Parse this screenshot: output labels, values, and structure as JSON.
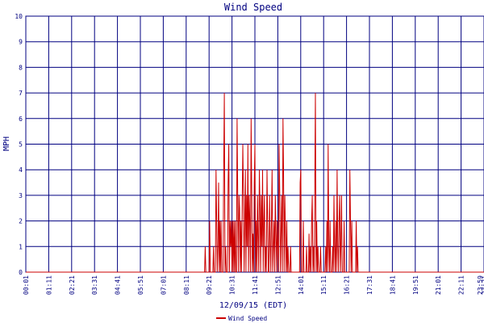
{
  "chart_data": {
    "type": "line",
    "title": "Wind Speed",
    "ylabel": "MPH",
    "xlabel": "12/09/15 (EDT)",
    "ylim": [
      0,
      10
    ],
    "y_ticks": [
      0,
      1,
      2,
      3,
      4,
      5,
      6,
      7,
      8,
      9,
      10
    ],
    "x_tick_labels": [
      "00:01",
      "01:11",
      "02:21",
      "03:31",
      "04:41",
      "05:51",
      "07:01",
      "08:11",
      "09:21",
      "10:31",
      "11:41",
      "12:51",
      "14:01",
      "15:11",
      "16:21",
      "17:31",
      "18:41",
      "19:51",
      "21:01",
      "22:11",
      "23:21"
    ],
    "x_end_label": "23:59",
    "x_range_minutes": [
      1,
      1439
    ],
    "grid": true,
    "legend_position": "bottom-left",
    "series": [
      {
        "name": "Wind Speed",
        "color": "#cc0000",
        "points": [
          [
            540,
            0
          ],
          [
            562,
            0
          ],
          [
            564,
            1
          ],
          [
            566,
            0
          ],
          [
            576,
            0
          ],
          [
            578,
            2
          ],
          [
            580,
            0
          ],
          [
            584,
            0
          ],
          [
            588,
            0
          ],
          [
            590,
            1
          ],
          [
            592,
            0
          ],
          [
            596,
            0
          ],
          [
            598,
            4
          ],
          [
            600,
            2
          ],
          [
            602,
            0
          ],
          [
            604,
            1
          ],
          [
            606,
            3.5
          ],
          [
            608,
            0
          ],
          [
            610,
            2
          ],
          [
            612,
            0
          ],
          [
            614,
            2
          ],
          [
            616,
            0
          ],
          [
            620,
            0
          ],
          [
            622,
            4
          ],
          [
            624,
            7
          ],
          [
            626,
            0
          ],
          [
            628,
            1
          ],
          [
            630,
            0
          ],
          [
            634,
            0
          ],
          [
            636,
            3.5
          ],
          [
            638,
            5
          ],
          [
            640,
            0
          ],
          [
            642,
            2
          ],
          [
            644,
            1
          ],
          [
            646,
            2
          ],
          [
            648,
            0
          ],
          [
            650,
            2
          ],
          [
            652,
            0
          ],
          [
            654,
            2
          ],
          [
            656,
            0
          ],
          [
            658,
            2
          ],
          [
            660,
            0
          ],
          [
            662,
            0
          ],
          [
            664,
            6
          ],
          [
            666,
            3
          ],
          [
            668,
            0
          ],
          [
            670,
            3
          ],
          [
            672,
            2.5
          ],
          [
            674,
            0
          ],
          [
            676,
            2
          ],
          [
            678,
            0
          ],
          [
            680,
            2.5
          ],
          [
            682,
            5
          ],
          [
            684,
            3
          ],
          [
            686,
            0
          ],
          [
            688,
            2
          ],
          [
            690,
            4
          ],
          [
            692,
            0
          ],
          [
            694,
            3
          ],
          [
            696,
            1
          ],
          [
            698,
            5
          ],
          [
            700,
            0
          ],
          [
            702,
            3
          ],
          [
            704,
            2
          ],
          [
            706,
            0
          ],
          [
            708,
            6
          ],
          [
            710,
            3
          ],
          [
            712,
            0
          ],
          [
            714,
            1.5
          ],
          [
            716,
            0
          ],
          [
            718,
            3.5
          ],
          [
            720,
            5
          ],
          [
            722,
            0
          ],
          [
            724,
            2
          ],
          [
            726,
            0
          ],
          [
            728,
            3
          ],
          [
            730,
            1.5
          ],
          [
            732,
            0
          ],
          [
            734,
            4
          ],
          [
            736,
            2.5
          ],
          [
            738,
            0
          ],
          [
            740,
            3
          ],
          [
            742,
            1
          ],
          [
            744,
            4
          ],
          [
            746,
            0
          ],
          [
            748,
            2
          ],
          [
            750,
            3
          ],
          [
            752,
            0
          ],
          [
            754,
            1
          ],
          [
            756,
            0
          ],
          [
            758,
            4
          ],
          [
            760,
            2
          ],
          [
            762,
            0
          ],
          [
            764,
            0
          ],
          [
            766,
            3
          ],
          [
            768,
            1
          ],
          [
            770,
            0
          ],
          [
            772,
            2
          ],
          [
            774,
            4
          ],
          [
            776,
            0
          ],
          [
            778,
            1
          ],
          [
            780,
            2
          ],
          [
            782,
            0
          ],
          [
            784,
            3
          ],
          [
            786,
            1.5
          ],
          [
            788,
            0
          ],
          [
            790,
            2
          ],
          [
            792,
            1
          ],
          [
            794,
            0
          ],
          [
            796,
            5
          ],
          [
            798,
            3
          ],
          [
            800,
            0
          ],
          [
            802,
            1.5
          ],
          [
            804,
            3
          ],
          [
            806,
            0
          ],
          [
            808,
            6
          ],
          [
            810,
            4
          ],
          [
            812,
            0
          ],
          [
            814,
            3
          ],
          [
            816,
            1.5
          ],
          [
            818,
            0
          ],
          [
            820,
            2
          ],
          [
            822,
            0
          ],
          [
            824,
            1
          ],
          [
            826,
            0
          ],
          [
            830,
            0
          ],
          [
            832,
            1
          ],
          [
            834,
            0
          ],
          [
            860,
            0
          ],
          [
            862,
            3.5
          ],
          [
            864,
            4
          ],
          [
            866,
            0
          ],
          [
            870,
            0
          ],
          [
            872,
            2
          ],
          [
            874,
            0
          ],
          [
            880,
            0
          ],
          [
            882,
            1
          ],
          [
            884,
            0
          ],
          [
            888,
            0
          ],
          [
            890,
            1.5
          ],
          [
            892,
            0
          ],
          [
            894,
            1
          ],
          [
            896,
            0
          ],
          [
            898,
            2
          ],
          [
            900,
            3
          ],
          [
            902,
            0
          ],
          [
            904,
            1
          ],
          [
            906,
            0
          ],
          [
            908,
            3.5
          ],
          [
            910,
            7
          ],
          [
            912,
            0
          ],
          [
            914,
            2
          ],
          [
            916,
            0
          ],
          [
            918,
            1
          ],
          [
            920,
            0
          ],
          [
            924,
            0
          ],
          [
            926,
            1
          ],
          [
            928,
            0
          ],
          [
            940,
            0
          ],
          [
            942,
            1
          ],
          [
            944,
            0
          ],
          [
            946,
            2
          ],
          [
            948,
            0
          ],
          [
            950,
            5
          ],
          [
            952,
            1
          ],
          [
            954,
            0
          ],
          [
            956,
            2
          ],
          [
            958,
            0
          ],
          [
            962,
            0
          ],
          [
            964,
            1
          ],
          [
            966,
            0
          ],
          [
            968,
            3
          ],
          [
            970,
            1
          ],
          [
            972,
            0
          ],
          [
            974,
            2
          ],
          [
            976,
            0
          ],
          [
            978,
            4
          ],
          [
            980,
            1
          ],
          [
            982,
            0
          ],
          [
            984,
            2
          ],
          [
            986,
            3
          ],
          [
            988,
            0
          ],
          [
            990,
            1
          ],
          [
            992,
            3
          ],
          [
            994,
            0
          ],
          [
            998,
            0
          ],
          [
            1000,
            2
          ],
          [
            1002,
            0
          ],
          [
            1016,
            0
          ],
          [
            1018,
            4
          ],
          [
            1020,
            2
          ],
          [
            1022,
            0
          ],
          [
            1024,
            2
          ],
          [
            1026,
            0
          ],
          [
            1036,
            0
          ],
          [
            1038,
            2
          ],
          [
            1040,
            0
          ],
          [
            1042,
            1
          ],
          [
            1044,
            0
          ]
        ]
      }
    ]
  }
}
